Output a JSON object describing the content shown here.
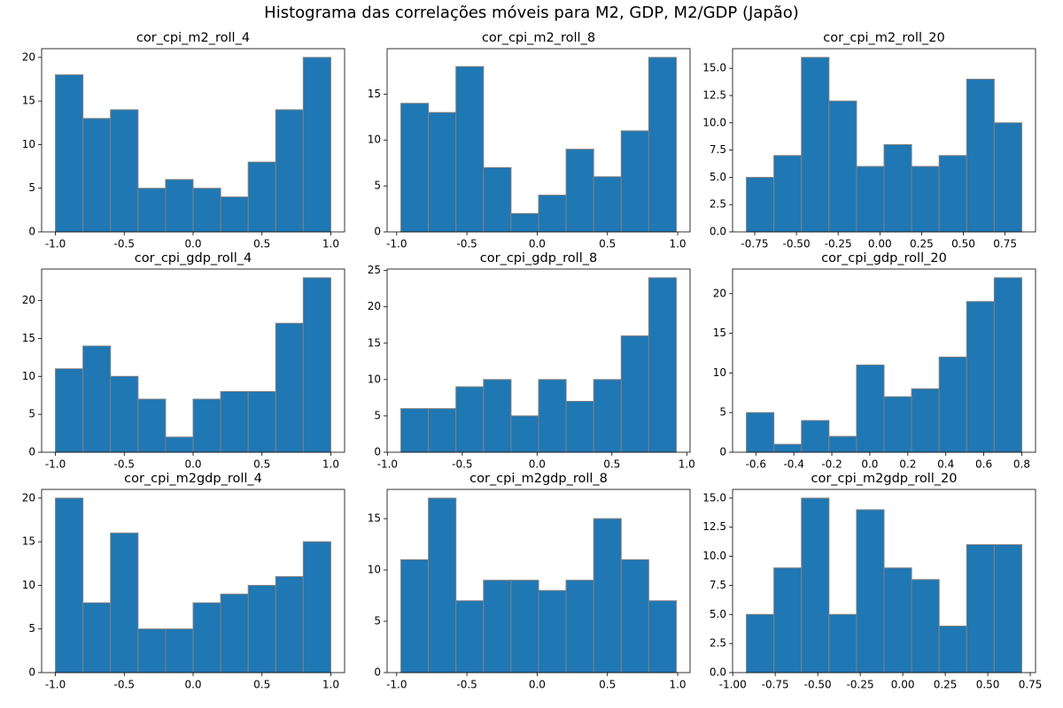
{
  "title": "Histograma das correlações móveis para M2, GDP, M2/GDP (Japão)",
  "chart_data": [
    {
      "type": "histogram",
      "title": "cor_cpi_m2_roll_4",
      "color": "#1f77b4",
      "edgecolor": "#808080",
      "bins": [
        -1.0,
        -0.8,
        -0.6,
        -0.4,
        -0.2,
        0.0,
        0.2,
        0.4,
        0.6,
        0.8,
        1.0
      ],
      "values": [
        18,
        13,
        14,
        5,
        6,
        5,
        4,
        8,
        14,
        20
      ],
      "xlim": [
        -1.1,
        1.1
      ],
      "xticks": [
        {
          "value": -1,
          "label": "-1.0"
        },
        -0.5,
        {
          "value": 0,
          "label": "0.0"
        },
        0.5,
        {
          "value": 1,
          "label": "1.0"
        }
      ],
      "ylim": [
        0,
        21
      ],
      "yticks": [
        0,
        5,
        10,
        15,
        20
      ]
    },
    {
      "type": "histogram",
      "title": "cor_cpi_m2_roll_8",
      "color": "#1f77b4",
      "edgecolor": "#808080",
      "bins": [
        -0.97,
        -0.774,
        -0.578,
        -0.382,
        -0.186,
        0.01,
        0.206,
        0.402,
        0.598,
        0.794,
        0.99
      ],
      "values": [
        14,
        13,
        18,
        7,
        2,
        4,
        9,
        6,
        11,
        19
      ],
      "xlim": [
        -1.068,
        1.088
      ],
      "xticks": [
        {
          "value": -1,
          "label": "-1.0"
        },
        -0.5,
        {
          "value": 0,
          "label": "0.0"
        },
        0.5,
        {
          "value": 1,
          "label": "1.0"
        }
      ],
      "ylim": [
        0,
        19.95
      ],
      "yticks": [
        0,
        5,
        10,
        15
      ]
    },
    {
      "type": "histogram",
      "title": "cor_cpi_m2_roll_20",
      "color": "#1f77b4",
      "edgecolor": "#808080",
      "bins": [
        -0.8,
        -0.635,
        -0.47,
        -0.305,
        -0.14,
        0.025,
        0.19,
        0.355,
        0.52,
        0.685,
        0.85
      ],
      "values": [
        5,
        7,
        16,
        12,
        6,
        8,
        6,
        7,
        14,
        10
      ],
      "xlim": [
        -0.8825,
        0.9325
      ],
      "xticks": [
        {
          "value": -0.75,
          "label": "-0.75"
        },
        {
          "value": -0.5,
          "label": "-0.50"
        },
        {
          "value": -0.25,
          "label": "-0.25"
        },
        {
          "value": 0,
          "label": "0.00"
        },
        {
          "value": 0.25,
          "label": "0.25"
        },
        {
          "value": 0.5,
          "label": "0.50"
        },
        {
          "value": 0.75,
          "label": "0.75"
        }
      ],
      "ylim": [
        0,
        16.8
      ],
      "yticks": [
        {
          "value": 0,
          "label": "0.0"
        },
        {
          "value": 2.5,
          "label": "2.5"
        },
        {
          "value": 5,
          "label": "5.0"
        },
        {
          "value": 7.5,
          "label": "7.5"
        },
        {
          "value": 10,
          "label": "10.0"
        },
        {
          "value": 12.5,
          "label": "12.5"
        },
        {
          "value": 15,
          "label": "15.0"
        }
      ]
    },
    {
      "type": "histogram",
      "title": "cor_cpi_gdp_roll_4",
      "color": "#1f77b4",
      "edgecolor": "#808080",
      "bins": [
        -1.0,
        -0.8,
        -0.6,
        -0.4,
        -0.2,
        0.0,
        0.2,
        0.4,
        0.6,
        0.8,
        1.0
      ],
      "values": [
        11,
        14,
        10,
        7,
        2,
        7,
        8,
        8,
        17,
        23
      ],
      "xlim": [
        -1.1,
        1.1
      ],
      "xticks": [
        {
          "value": -1,
          "label": "-1.0"
        },
        -0.5,
        {
          "value": 0,
          "label": "0.0"
        },
        0.5,
        {
          "value": 1,
          "label": "1.0"
        }
      ],
      "ylim": [
        0,
        24.15
      ],
      "yticks": [
        0,
        5,
        10,
        15,
        20
      ]
    },
    {
      "type": "histogram",
      "title": "cor_cpi_gdp_roll_8",
      "color": "#1f77b4",
      "edgecolor": "#808080",
      "bins": [
        -0.91,
        -0.726,
        -0.542,
        -0.358,
        -0.174,
        0.01,
        0.194,
        0.378,
        0.562,
        0.746,
        0.93
      ],
      "values": [
        6,
        6,
        9,
        10,
        5,
        10,
        7,
        10,
        16,
        24
      ],
      "xlim": [
        -1.002,
        1.022
      ],
      "xticks": [
        {
          "value": -1,
          "label": "-1.0"
        },
        -0.5,
        {
          "value": 0,
          "label": "0.0"
        },
        0.5,
        {
          "value": 1,
          "label": "1.0"
        }
      ],
      "ylim": [
        0,
        25.2
      ],
      "yticks": [
        0,
        5,
        10,
        15,
        20,
        25
      ]
    },
    {
      "type": "histogram",
      "title": "cor_cpi_gdp_roll_20",
      "color": "#1f77b4",
      "edgecolor": "#808080",
      "bins": [
        -0.65,
        -0.505,
        -0.36,
        -0.215,
        -0.07,
        0.075,
        0.22,
        0.365,
        0.51,
        0.655,
        0.8
      ],
      "values": [
        5,
        1,
        4,
        2,
        11,
        7,
        8,
        12,
        19,
        22
      ],
      "xlim": [
        -0.7225,
        0.8725
      ],
      "xticks": [
        -0.6,
        -0.4,
        -0.2,
        {
          "value": 0,
          "label": "0.0"
        },
        0.2,
        0.4,
        0.6,
        0.8
      ],
      "ylim": [
        0,
        23.1
      ],
      "yticks": [
        0,
        5,
        10,
        15,
        20
      ]
    },
    {
      "type": "histogram",
      "title": "cor_cpi_m2gdp_roll_4",
      "color": "#1f77b4",
      "edgecolor": "#808080",
      "bins": [
        -1.0,
        -0.8,
        -0.6,
        -0.4,
        -0.2,
        0.0,
        0.2,
        0.4,
        0.6,
        0.8,
        1.0
      ],
      "values": [
        20,
        8,
        16,
        5,
        5,
        8,
        9,
        10,
        11,
        15
      ],
      "xlim": [
        -1.1,
        1.1
      ],
      "xticks": [
        {
          "value": -1,
          "label": "-1.0"
        },
        -0.5,
        {
          "value": 0,
          "label": "0.0"
        },
        0.5,
        {
          "value": 1,
          "label": "1.0"
        }
      ],
      "ylim": [
        0,
        21
      ],
      "yticks": [
        0,
        5,
        10,
        15,
        20
      ]
    },
    {
      "type": "histogram",
      "title": "cor_cpi_m2gdp_roll_8",
      "color": "#1f77b4",
      "edgecolor": "#808080",
      "bins": [
        -0.97,
        -0.774,
        -0.578,
        -0.382,
        -0.186,
        0.01,
        0.206,
        0.402,
        0.598,
        0.794,
        0.99
      ],
      "values": [
        11,
        17,
        7,
        9,
        9,
        8,
        9,
        15,
        11,
        7
      ],
      "xlim": [
        -1.068,
        1.088
      ],
      "xticks": [
        {
          "value": -1,
          "label": "-1.0"
        },
        -0.5,
        {
          "value": 0,
          "label": "0.0"
        },
        0.5,
        {
          "value": 1,
          "label": "1.0"
        }
      ],
      "ylim": [
        0,
        17.85
      ],
      "yticks": [
        0,
        5,
        10,
        15
      ]
    },
    {
      "type": "histogram",
      "title": "cor_cpi_m2gdp_roll_20",
      "color": "#1f77b4",
      "edgecolor": "#808080",
      "bins": [
        -0.92,
        -0.758,
        -0.596,
        -0.434,
        -0.272,
        -0.11,
        0.052,
        0.214,
        0.376,
        0.538,
        0.7
      ],
      "values": [
        5,
        9,
        15,
        5,
        14,
        9,
        8,
        4,
        11,
        11
      ],
      "xlim": [
        -1.001,
        0.781
      ],
      "xticks": [
        {
          "value": -1,
          "label": "-1.00"
        },
        {
          "value": -0.75,
          "label": "-0.75"
        },
        {
          "value": -0.5,
          "label": "-0.50"
        },
        {
          "value": -0.25,
          "label": "-0.25"
        },
        {
          "value": 0,
          "label": "0.00"
        },
        {
          "value": 0.25,
          "label": "0.25"
        },
        {
          "value": 0.5,
          "label": "0.50"
        },
        {
          "value": 0.75,
          "label": "0.75"
        }
      ],
      "ylim": [
        0,
        15.75
      ],
      "yticks": [
        {
          "value": 0,
          "label": "0.0"
        },
        {
          "value": 2.5,
          "label": "2.5"
        },
        {
          "value": 5,
          "label": "5.0"
        },
        {
          "value": 7.5,
          "label": "7.5"
        },
        {
          "value": 10,
          "label": "10.0"
        },
        {
          "value": 12.5,
          "label": "12.5"
        },
        {
          "value": 15,
          "label": "15.0"
        }
      ]
    }
  ]
}
